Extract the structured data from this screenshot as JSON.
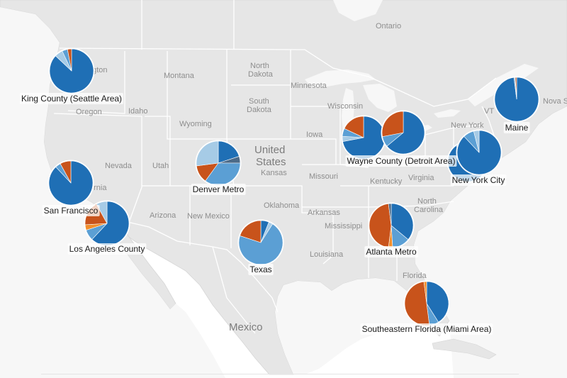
{
  "colors": {
    "dark_blue": "#1f6fb5",
    "light_blue": "#5b9fd4",
    "pale_blue": "#a6cbe6",
    "orange": "#c8531b",
    "bright_orange": "#f28e2b",
    "slate": "#4c6a88",
    "land": "#e4e4e4",
    "water": "#f6f6f6",
    "border": "#ffffff"
  },
  "background_labels": [
    {
      "name": "ontario",
      "text": "Ontario"
    },
    {
      "name": "montana",
      "text": "Montana"
    },
    {
      "name": "north-dakota-1",
      "text": "North"
    },
    {
      "name": "north-dakota-2",
      "text": "Dakota"
    },
    {
      "name": "minnesota",
      "text": "Minnesota"
    },
    {
      "name": "south-dakota-1",
      "text": "South"
    },
    {
      "name": "south-dakota-2",
      "text": "Dakota"
    },
    {
      "name": "wisconsin",
      "text": "Wisconsin"
    },
    {
      "name": "oregon",
      "text": "Oregon"
    },
    {
      "name": "idaho",
      "text": "Idaho"
    },
    {
      "name": "wyoming",
      "text": "Wyoming"
    },
    {
      "name": "iowa",
      "text": "Iowa"
    },
    {
      "name": "nevada",
      "text": "Nevada"
    },
    {
      "name": "utah",
      "text": "Utah"
    },
    {
      "name": "kansas",
      "text": "Kansas"
    },
    {
      "name": "missouri",
      "text": "Missouri"
    },
    {
      "name": "kentucky",
      "text": "Kentucky"
    },
    {
      "name": "virginia",
      "text": "Virginia"
    },
    {
      "name": "arizona",
      "text": "Arizona"
    },
    {
      "name": "new-mexico",
      "text": "New Mexico"
    },
    {
      "name": "oklahoma",
      "text": "Oklahoma"
    },
    {
      "name": "arkansas",
      "text": "Arkansas"
    },
    {
      "name": "mississippi",
      "text": "Mississippi"
    },
    {
      "name": "louisiana",
      "text": "Louisiana"
    },
    {
      "name": "north-carolina-1",
      "text": "North"
    },
    {
      "name": "north-carolina-2",
      "text": "Carolina"
    },
    {
      "name": "florida",
      "text": "Florida"
    },
    {
      "name": "new-york",
      "text": "New York"
    },
    {
      "name": "vermont",
      "text": "VT"
    },
    {
      "name": "nova-scotia",
      "text": "Nova S"
    },
    {
      "name": "washington-fragment",
      "text": "hgton"
    },
    {
      "name": "california-fragment",
      "text": "ornia"
    }
  ],
  "country_labels": [
    {
      "name": "united-states-1",
      "text": "United"
    },
    {
      "name": "united-states-2",
      "text": "States"
    },
    {
      "name": "mexico",
      "text": "Mexico"
    }
  ],
  "regions": [
    {
      "id": "king-county",
      "label": "King County (Seattle Area)",
      "shares": [
        {
          "color": "dark_blue",
          "value": 87
        },
        {
          "color": "pale_blue",
          "value": 6
        },
        {
          "color": "light_blue",
          "value": 4
        },
        {
          "color": "orange",
          "value": 3
        }
      ]
    },
    {
      "id": "san-francisco",
      "label": "San Francisco",
      "shares": [
        {
          "color": "dark_blue",
          "value": 88
        },
        {
          "color": "light_blue",
          "value": 4
        },
        {
          "color": "orange",
          "value": 8
        }
      ]
    },
    {
      "id": "los-angeles",
      "label": "Los Angeles County",
      "shares": [
        {
          "color": "dark_blue",
          "value": 62
        },
        {
          "color": "light_blue",
          "value": 8
        },
        {
          "color": "bright_orange",
          "value": 4
        },
        {
          "color": "orange",
          "value": 18
        },
        {
          "color": "pale_blue",
          "value": 8
        }
      ]
    },
    {
      "id": "denver",
      "label": "Denver Metro",
      "shares": [
        {
          "color": "dark_blue",
          "value": 20
        },
        {
          "color": "slate",
          "value": 5
        },
        {
          "color": "light_blue",
          "value": 35
        },
        {
          "color": "orange",
          "value": 13
        },
        {
          "color": "pale_blue",
          "value": 27
        }
      ]
    },
    {
      "id": "texas",
      "label": "Texas",
      "shares": [
        {
          "color": "dark_blue",
          "value": 6
        },
        {
          "color": "pale_blue",
          "value": 3
        },
        {
          "color": "light_blue",
          "value": 71
        },
        {
          "color": "orange",
          "value": 20
        }
      ]
    },
    {
      "id": "wayne-county",
      "label": "Wayne County (Detroit Area)",
      "shares": [
        {
          "color": "dark_blue",
          "value": 72
        },
        {
          "color": "pale_blue",
          "value": 4
        },
        {
          "color": "light_blue",
          "value": 6
        },
        {
          "color": "orange",
          "value": 18
        }
      ]
    },
    {
      "id": "detroit-second",
      "label": "",
      "shares": [
        {
          "color": "dark_blue",
          "value": 64
        },
        {
          "color": "light_blue",
          "value": 8
        },
        {
          "color": "orange",
          "value": 28
        }
      ]
    },
    {
      "id": "atlanta",
      "label": "Atlanta Metro",
      "shares": [
        {
          "color": "dark_blue",
          "value": 36
        },
        {
          "color": "light_blue",
          "value": 13
        },
        {
          "color": "bright_orange",
          "value": 3
        },
        {
          "color": "orange",
          "value": 46
        },
        {
          "color": "slate",
          "value": 2
        }
      ]
    },
    {
      "id": "miami",
      "label": "Southeastern Florida (Miami Area)",
      "shares": [
        {
          "color": "dark_blue",
          "value": 41
        },
        {
          "color": "light_blue",
          "value": 7
        },
        {
          "color": "orange",
          "value": 50
        },
        {
          "color": "bright_orange",
          "value": 2
        }
      ]
    },
    {
      "id": "new-york-city",
      "label": "New York City",
      "shares": [
        {
          "color": "dark_blue",
          "value": 88
        },
        {
          "color": "light_blue",
          "value": 8
        },
        {
          "color": "pale_blue",
          "value": 4
        }
      ]
    },
    {
      "id": "new-york-second",
      "label": "",
      "shares": [
        {
          "color": "dark_blue",
          "value": 90
        },
        {
          "color": "light_blue",
          "value": 6
        },
        {
          "color": "pale_blue",
          "value": 4
        }
      ]
    },
    {
      "id": "maine",
      "label": "Maine",
      "shares": [
        {
          "color": "dark_blue",
          "value": 98
        },
        {
          "color": "pale_blue",
          "value": 1
        },
        {
          "color": "orange",
          "value": 1
        }
      ]
    }
  ]
}
